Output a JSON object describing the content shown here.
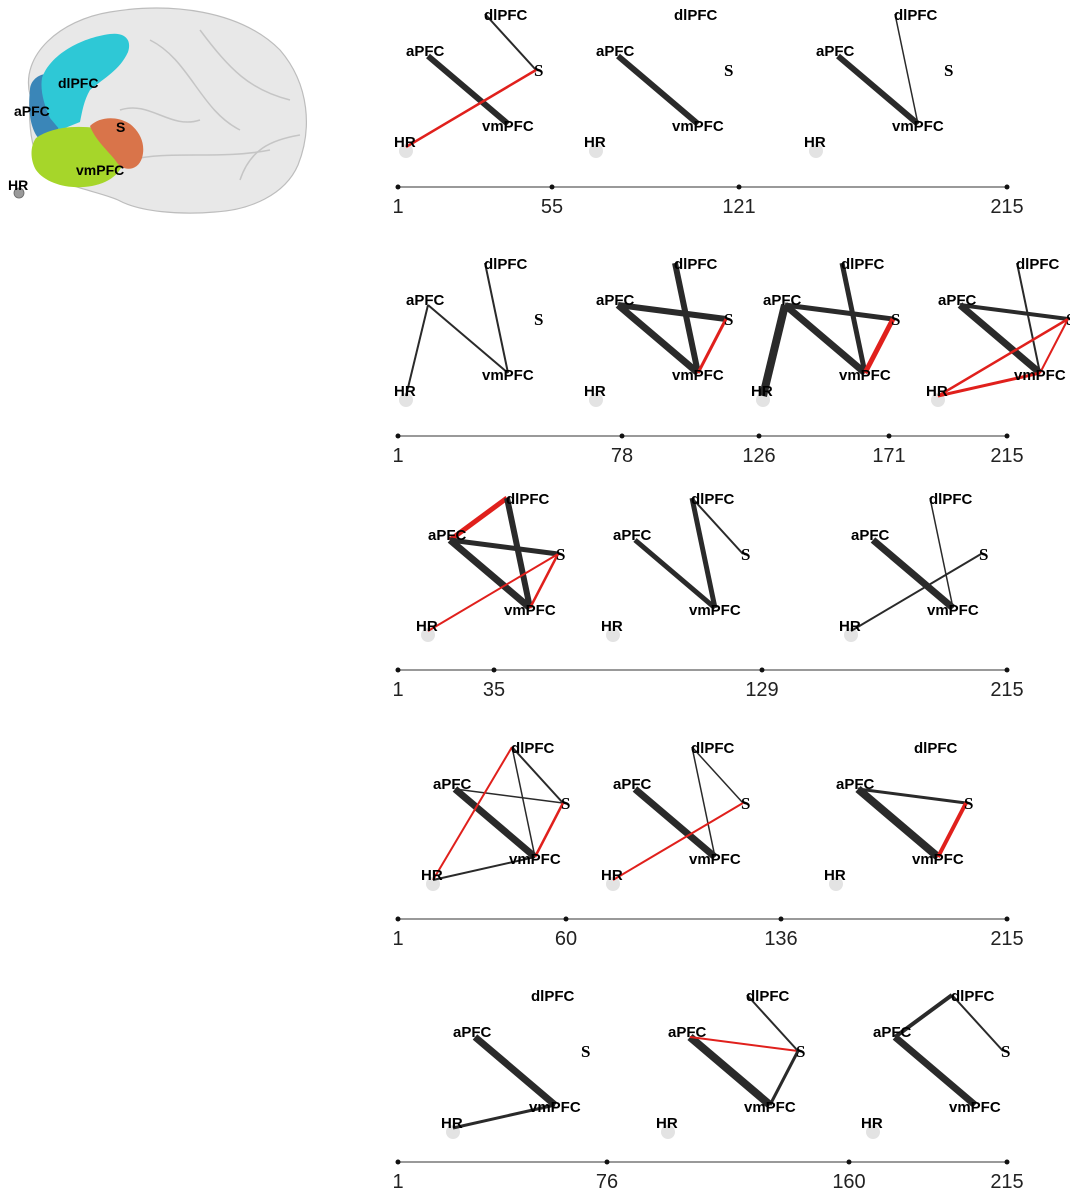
{
  "brain": {
    "labels": {
      "dlpfc": "dlPFC",
      "apfc": "aPFC",
      "s": "S",
      "vmpfc": "vmPFC",
      "hr": "HR"
    },
    "colors": {
      "dlpfc": "#2ec8d6",
      "apfc": "#3a86b8",
      "s": "#d9744a",
      "vmpfc": "#a6d62a",
      "cortex": "#d9d9d9"
    }
  },
  "node_labels": {
    "dlPFC": "dlPFC",
    "aPFC": "aPFC",
    "S": "S",
    "vmPFC": "vmPFC",
    "HR": "HR"
  },
  "edge_colors": {
    "dark": "#2a2a2a",
    "red": "#e0201c",
    "hr_node": "#e3e3e3"
  },
  "rows": [
    {
      "ticks": [
        "1",
        "55",
        "121",
        "215"
      ],
      "graphs": [
        {
          "edges": [
            {
              "from": "dlPFC",
              "to": "S",
              "weight": 2,
              "color": "dark"
            },
            {
              "from": "aPFC",
              "to": "vmPFC",
              "weight": 6,
              "color": "dark"
            },
            {
              "from": "HR",
              "to": "S",
              "weight": 2.5,
              "color": "red"
            }
          ]
        },
        {
          "edges": [
            {
              "from": "aPFC",
              "to": "vmPFC",
              "weight": 6,
              "color": "dark"
            }
          ]
        },
        {
          "edges": [
            {
              "from": "aPFC",
              "to": "vmPFC",
              "weight": 6,
              "color": "dark"
            },
            {
              "from": "dlPFC",
              "to": "vmPFC",
              "weight": 1.5,
              "color": "dark"
            }
          ]
        }
      ]
    },
    {
      "ticks": [
        "1",
        "78",
        "126",
        "171",
        "215"
      ],
      "graphs": [
        {
          "edges": [
            {
              "from": "aPFC",
              "to": "HR",
              "weight": 2,
              "color": "dark"
            },
            {
              "from": "aPFC",
              "to": "vmPFC",
              "weight": 2,
              "color": "dark"
            },
            {
              "from": "dlPFC",
              "to": "vmPFC",
              "weight": 2,
              "color": "dark"
            }
          ]
        },
        {
          "edges": [
            {
              "from": "aPFC",
              "to": "S",
              "weight": 6,
              "color": "dark"
            },
            {
              "from": "aPFC",
              "to": "vmPFC",
              "weight": 7,
              "color": "dark"
            },
            {
              "from": "dlPFC",
              "to": "vmPFC",
              "weight": 6,
              "color": "dark"
            },
            {
              "from": "S",
              "to": "vmPFC",
              "weight": 3,
              "color": "red"
            }
          ]
        },
        {
          "edges": [
            {
              "from": "aPFC",
              "to": "HR",
              "weight": 8,
              "color": "dark"
            },
            {
              "from": "aPFC",
              "to": "S",
              "weight": 5,
              "color": "dark"
            },
            {
              "from": "aPFC",
              "to": "vmPFC",
              "weight": 7,
              "color": "dark"
            },
            {
              "from": "dlPFC",
              "to": "vmPFC",
              "weight": 5,
              "color": "dark"
            },
            {
              "from": "S",
              "to": "vmPFC",
              "weight": 5,
              "color": "red"
            }
          ]
        },
        {
          "edges": [
            {
              "from": "aPFC",
              "to": "S",
              "weight": 4,
              "color": "dark"
            },
            {
              "from": "aPFC",
              "to": "vmPFC",
              "weight": 7,
              "color": "dark"
            },
            {
              "from": "dlPFC",
              "to": "vmPFC",
              "weight": 2,
              "color": "dark"
            },
            {
              "from": "HR",
              "to": "S",
              "weight": 2.5,
              "color": "red"
            },
            {
              "from": "HR",
              "to": "vmPFC",
              "weight": 3,
              "color": "red"
            },
            {
              "from": "S",
              "to": "vmPFC",
              "weight": 2,
              "color": "red"
            }
          ]
        }
      ]
    },
    {
      "ticks": [
        "1",
        "35",
        "129",
        "215"
      ],
      "graphs": [
        {
          "edges": [
            {
              "from": "aPFC",
              "to": "dlPFC",
              "weight": 5,
              "color": "red"
            },
            {
              "from": "dlPFC",
              "to": "vmPFC",
              "weight": 6,
              "color": "dark"
            },
            {
              "from": "aPFC",
              "to": "S",
              "weight": 5,
              "color": "dark"
            },
            {
              "from": "aPFC",
              "to": "vmPFC",
              "weight": 7,
              "color": "dark"
            },
            {
              "from": "S",
              "to": "vmPFC",
              "weight": 2.5,
              "color": "red"
            },
            {
              "from": "HR",
              "to": "S",
              "weight": 2,
              "color": "red"
            }
          ]
        },
        {
          "edges": [
            {
              "from": "aPFC",
              "to": "vmPFC",
              "weight": 5,
              "color": "dark"
            },
            {
              "from": "dlPFC",
              "to": "vmPFC",
              "weight": 5,
              "color": "dark"
            },
            {
              "from": "dlPFC",
              "to": "S",
              "weight": 2,
              "color": "dark"
            }
          ]
        },
        {
          "edges": [
            {
              "from": "aPFC",
              "to": "vmPFC",
              "weight": 7,
              "color": "dark"
            },
            {
              "from": "dlPFC",
              "to": "vmPFC",
              "weight": 1.5,
              "color": "dark"
            },
            {
              "from": "HR",
              "to": "S",
              "weight": 2,
              "color": "dark"
            }
          ]
        }
      ]
    },
    {
      "ticks": [
        "1",
        "60",
        "136",
        "215"
      ],
      "graphs": [
        {
          "edges": [
            {
              "from": "aPFC",
              "to": "vmPFC",
              "weight": 7,
              "color": "dark"
            },
            {
              "from": "aPFC",
              "to": "S",
              "weight": 1.5,
              "color": "dark"
            },
            {
              "from": "dlPFC",
              "to": "S",
              "weight": 2,
              "color": "dark"
            },
            {
              "from": "dlPFC",
              "to": "vmPFC",
              "weight": 1.5,
              "color": "dark"
            },
            {
              "from": "dlPFC",
              "to": "HR",
              "weight": 2,
              "color": "red"
            },
            {
              "from": "S",
              "to": "vmPFC",
              "weight": 2.5,
              "color": "red"
            },
            {
              "from": "HR",
              "to": "vmPFC",
              "weight": 2,
              "color": "dark"
            }
          ]
        },
        {
          "edges": [
            {
              "from": "aPFC",
              "to": "vmPFC",
              "weight": 7,
              "color": "dark"
            },
            {
              "from": "dlPFC",
              "to": "S",
              "weight": 1.5,
              "color": "dark"
            },
            {
              "from": "dlPFC",
              "to": "vmPFC",
              "weight": 1.5,
              "color": "dark"
            },
            {
              "from": "HR",
              "to": "S",
              "weight": 2,
              "color": "red"
            }
          ]
        },
        {
          "edges": [
            {
              "from": "aPFC",
              "to": "vmPFC",
              "weight": 8,
              "color": "dark"
            },
            {
              "from": "aPFC",
              "to": "S",
              "weight": 3,
              "color": "dark"
            },
            {
              "from": "S",
              "to": "vmPFC",
              "weight": 4,
              "color": "red"
            }
          ]
        }
      ]
    },
    {
      "ticks": [
        "1",
        "76",
        "160",
        "215"
      ],
      "graphs": [
        {
          "edges": [
            {
              "from": "aPFC",
              "to": "vmPFC",
              "weight": 7,
              "color": "dark"
            },
            {
              "from": "HR",
              "to": "vmPFC",
              "weight": 3,
              "color": "dark"
            }
          ]
        },
        {
          "edges": [
            {
              "from": "aPFC",
              "to": "vmPFC",
              "weight": 8,
              "color": "dark"
            },
            {
              "from": "aPFC",
              "to": "S",
              "weight": 2,
              "color": "red"
            },
            {
              "from": "dlPFC",
              "to": "S",
              "weight": 2,
              "color": "dark"
            },
            {
              "from": "S",
              "to": "vmPFC",
              "weight": 3,
              "color": "dark"
            }
          ]
        },
        {
          "edges": [
            {
              "from": "aPFC",
              "to": "vmPFC",
              "weight": 7,
              "color": "dark"
            },
            {
              "from": "aPFC",
              "to": "dlPFC",
              "weight": 4,
              "color": "dark"
            },
            {
              "from": "dlPFC",
              "to": "S",
              "weight": 2,
              "color": "dark"
            }
          ]
        }
      ]
    }
  ]
}
